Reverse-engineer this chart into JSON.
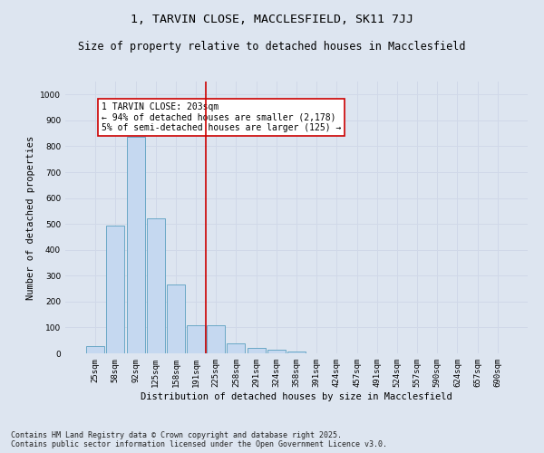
{
  "title_line1": "1, TARVIN CLOSE, MACCLESFIELD, SK11 7JJ",
  "title_line2": "Size of property relative to detached houses in Macclesfield",
  "xlabel": "Distribution of detached houses by size in Macclesfield",
  "ylabel": "Number of detached properties",
  "categories": [
    "25sqm",
    "58sqm",
    "92sqm",
    "125sqm",
    "158sqm",
    "191sqm",
    "225sqm",
    "258sqm",
    "291sqm",
    "324sqm",
    "358sqm",
    "391sqm",
    "424sqm",
    "457sqm",
    "491sqm",
    "524sqm",
    "557sqm",
    "590sqm",
    "624sqm",
    "657sqm",
    "690sqm"
  ],
  "values": [
    28,
    493,
    835,
    520,
    265,
    110,
    110,
    38,
    20,
    13,
    8,
    0,
    0,
    0,
    0,
    0,
    0,
    0,
    0,
    0,
    0
  ],
  "bar_color": "#c5d8f0",
  "bar_edge_color": "#5a9fc0",
  "vline_color": "#cc0000",
  "vline_x_index": 5.5,
  "annotation_text": "1 TARVIN CLOSE: 203sqm\n← 94% of detached houses are smaller (2,178)\n5% of semi-detached houses are larger (125) →",
  "annotation_box_color": "#ffffff",
  "annotation_box_edge_color": "#cc0000",
  "ylim": [
    0,
    1050
  ],
  "yticks": [
    0,
    100,
    200,
    300,
    400,
    500,
    600,
    700,
    800,
    900,
    1000
  ],
  "grid_color": "#d0d8e8",
  "background_color": "#dde5f0",
  "footer_text": "Contains HM Land Registry data © Crown copyright and database right 2025.\nContains public sector information licensed under the Open Government Licence v3.0.",
  "title_fontsize": 9.5,
  "subtitle_fontsize": 8.5,
  "axis_label_fontsize": 7.5,
  "tick_fontsize": 6.5,
  "annotation_fontsize": 7,
  "footer_fontsize": 6
}
